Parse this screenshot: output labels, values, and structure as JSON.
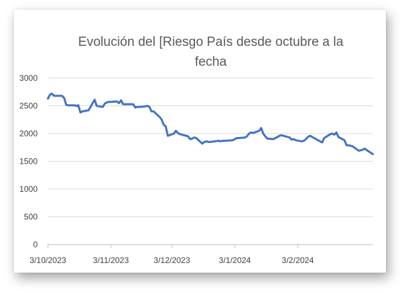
{
  "chart_data": {
    "type": "line",
    "title_lines": [
      "Evolución del [Riesgo País desde octubre a la",
      "fecha"
    ],
    "xlabel": "",
    "ylabel": "",
    "ylim": [
      0,
      3000
    ],
    "yticks": [
      "0",
      "500",
      "1000",
      "1500",
      "2000",
      "2500",
      "3000"
    ],
    "xticks": [
      {
        "label": "3/10/2023",
        "date": "2023-10-03"
      },
      {
        "label": "3/11/2023",
        "date": "2023-11-03"
      },
      {
        "label": "3/12/2023",
        "date": "2023-12-03"
      },
      {
        "label": "3/1/2024",
        "date": "2024-01-03"
      },
      {
        "label": "3/2/2024",
        "date": "2024-02-03"
      }
    ],
    "x_start": "2023-10-03",
    "x_end": "2024-03-11",
    "grid": "horizontal",
    "line_color": "#4472C4",
    "points": [
      [
        "2023-10-03",
        2630
      ],
      [
        "2023-10-04",
        2700
      ],
      [
        "2023-10-05",
        2720
      ],
      [
        "2023-10-06",
        2680
      ],
      [
        "2023-10-09",
        2680
      ],
      [
        "2023-10-10",
        2680
      ],
      [
        "2023-10-11",
        2640
      ],
      [
        "2023-10-12",
        2520
      ],
      [
        "2023-10-13",
        2510
      ],
      [
        "2023-10-16",
        2510
      ],
      [
        "2023-10-17",
        2500
      ],
      [
        "2023-10-18",
        2510
      ],
      [
        "2023-10-19",
        2380
      ],
      [
        "2023-10-20",
        2400
      ],
      [
        "2023-10-23",
        2420
      ],
      [
        "2023-10-24",
        2480
      ],
      [
        "2023-10-25",
        2550
      ],
      [
        "2023-10-26",
        2610
      ],
      [
        "2023-10-27",
        2500
      ],
      [
        "2023-10-30",
        2480
      ],
      [
        "2023-10-31",
        2540
      ],
      [
        "2023-11-01",
        2560
      ],
      [
        "2023-11-02",
        2570
      ],
      [
        "2023-11-03",
        2570
      ],
      [
        "2023-11-06",
        2580
      ],
      [
        "2023-11-07",
        2550
      ],
      [
        "2023-11-08",
        2600
      ],
      [
        "2023-11-09",
        2530
      ],
      [
        "2023-11-10",
        2530
      ],
      [
        "2023-11-13",
        2530
      ],
      [
        "2023-11-14",
        2530
      ],
      [
        "2023-11-15",
        2470
      ],
      [
        "2023-11-16",
        2480
      ],
      [
        "2023-11-17",
        2480
      ],
      [
        "2023-11-20",
        2490
      ],
      [
        "2023-11-21",
        2500
      ],
      [
        "2023-11-22",
        2480
      ],
      [
        "2023-11-23",
        2400
      ],
      [
        "2023-11-24",
        2400
      ],
      [
        "2023-11-27",
        2300
      ],
      [
        "2023-11-28",
        2250
      ],
      [
        "2023-11-29",
        2160
      ],
      [
        "2023-11-30",
        2130
      ],
      [
        "2023-12-01",
        1960
      ],
      [
        "2023-12-04",
        2000
      ],
      [
        "2023-12-05",
        2050
      ],
      [
        "2023-12-06",
        2010
      ],
      [
        "2023-12-07",
        1990
      ],
      [
        "2023-12-08",
        1980
      ],
      [
        "2023-12-11",
        1950
      ],
      [
        "2023-12-12",
        1900
      ],
      [
        "2023-12-13",
        1910
      ],
      [
        "2023-12-14",
        1930
      ],
      [
        "2023-12-15",
        1920
      ],
      [
        "2023-12-18",
        1820
      ],
      [
        "2023-12-19",
        1850
      ],
      [
        "2023-12-20",
        1860
      ],
      [
        "2023-12-21",
        1850
      ],
      [
        "2023-12-22",
        1850
      ],
      [
        "2023-12-26",
        1870
      ],
      [
        "2023-12-27",
        1860
      ],
      [
        "2023-12-28",
        1870
      ],
      [
        "2023-12-29",
        1870
      ],
      [
        "2024-01-02",
        1880
      ],
      [
        "2024-01-03",
        1900
      ],
      [
        "2024-01-04",
        1920
      ],
      [
        "2024-01-05",
        1920
      ],
      [
        "2024-01-08",
        1930
      ],
      [
        "2024-01-09",
        1950
      ],
      [
        "2024-01-10",
        2000
      ],
      [
        "2024-01-11",
        2020
      ],
      [
        "2024-01-12",
        2010
      ],
      [
        "2024-01-15",
        2050
      ],
      [
        "2024-01-16",
        2100
      ],
      [
        "2024-01-17",
        2000
      ],
      [
        "2024-01-18",
        1950
      ],
      [
        "2024-01-19",
        1910
      ],
      [
        "2024-01-22",
        1900
      ],
      [
        "2024-01-23",
        1920
      ],
      [
        "2024-01-24",
        1940
      ],
      [
        "2024-01-25",
        1960
      ],
      [
        "2024-01-26",
        1970
      ],
      [
        "2024-01-29",
        1940
      ],
      [
        "2024-01-30",
        1930
      ],
      [
        "2024-01-31",
        1890
      ],
      [
        "2024-02-01",
        1900
      ],
      [
        "2024-02-02",
        1880
      ],
      [
        "2024-02-05",
        1860
      ],
      [
        "2024-02-06",
        1870
      ],
      [
        "2024-02-07",
        1900
      ],
      [
        "2024-02-08",
        1940
      ],
      [
        "2024-02-09",
        1960
      ],
      [
        "2024-02-12",
        1900
      ],
      [
        "2024-02-13",
        1880
      ],
      [
        "2024-02-14",
        1860
      ],
      [
        "2024-02-15",
        1840
      ],
      [
        "2024-02-16",
        1920
      ],
      [
        "2024-02-19",
        1990
      ],
      [
        "2024-02-20",
        2000
      ],
      [
        "2024-02-21",
        1980
      ],
      [
        "2024-02-22",
        2020
      ],
      [
        "2024-02-23",
        1940
      ],
      [
        "2024-02-26",
        1880
      ],
      [
        "2024-02-27",
        1790
      ],
      [
        "2024-02-28",
        1790
      ],
      [
        "2024-02-29",
        1780
      ],
      [
        "2024-03-01",
        1770
      ],
      [
        "2024-03-04",
        1690
      ],
      [
        "2024-03-05",
        1700
      ],
      [
        "2024-03-06",
        1710
      ],
      [
        "2024-03-07",
        1730
      ],
      [
        "2024-03-08",
        1700
      ],
      [
        "2024-03-11",
        1630
      ]
    ]
  }
}
